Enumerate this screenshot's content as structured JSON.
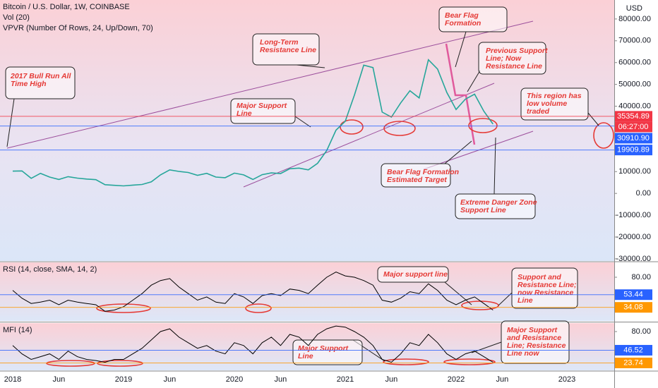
{
  "chart_data": [
    {
      "type": "line",
      "title": "Bitcoin / U.S. Dollar, 1W, COINBASE",
      "subtitles": [
        "Vol (20)",
        "VPVR (Number Of Rows, 24, Up/Down, 70)"
      ],
      "ylabel": "USD",
      "categories": [
        "2018",
        null,
        null,
        null,
        null,
        "Jun",
        null,
        null,
        null,
        null,
        null,
        null,
        "2019",
        null,
        null,
        null,
        null,
        "Jun",
        null,
        null,
        null,
        null,
        null,
        null,
        "2020",
        null,
        null,
        null,
        null,
        "Jun",
        null,
        null,
        null,
        null,
        null,
        null,
        "2021",
        null,
        null,
        null,
        null,
        "Jun",
        null,
        null,
        null,
        null,
        null,
        null,
        "2022",
        null,
        null,
        null,
        null,
        "Jun",
        null,
        null,
        null,
        null,
        null,
        null,
        "2023"
      ],
      "values": [
        10200,
        10300,
        6900,
        9200,
        7500,
        6400,
        7700,
        7000,
        6600,
        6300,
        4000,
        3700,
        3450,
        3800,
        4100,
        5300,
        8500,
        10800,
        10100,
        9600,
        8300,
        9200,
        7500,
        7200,
        9300,
        8500,
        6400,
        8600,
        9400,
        9100,
        11300,
        11600,
        10800,
        13800,
        19700,
        29000,
        33100,
        45200,
        58800,
        57700,
        37300,
        35000,
        41500,
        47100,
        43800,
        61300,
        57000,
        46300,
        38500,
        43200,
        45500,
        37700,
        31800,
        null,
        null,
        null,
        null,
        null,
        null,
        null,
        null
      ],
      "color": "#26a69a",
      "ylim": [
        -31000,
        88700
      ],
      "yticks": [
        {
          "value": 80000,
          "label": "80000.00"
        },
        {
          "value": 70000,
          "label": "70000.00"
        },
        {
          "value": 60000,
          "label": "60000.00"
        },
        {
          "value": 50000,
          "label": "50000.00"
        },
        {
          "value": 40000,
          "label": "40000.00"
        },
        {
          "value": 10000,
          "label": "10000.00"
        },
        {
          "value": 0,
          "label": "0.00"
        },
        {
          "value": -10000,
          "label": "-10000.00"
        },
        {
          "value": -20000,
          "label": "-20000.00"
        },
        {
          "value": -30000,
          "label": "-30000.00"
        }
      ],
      "markers": [
        {
          "value": 35354.89,
          "label": "35354.89",
          "color": "#f23645"
        },
        {
          "value": 30910.9,
          "label": "30910.90",
          "color": "#2962ff"
        },
        {
          "value": 19909.89,
          "label": "19909.89",
          "color": "#2962ff"
        }
      ],
      "countdown": "06:27:00"
    },
    {
      "type": "line",
      "title": "RSI (14, close, SMA, 14, 2)",
      "values": [
        60,
        48,
        40,
        42,
        45,
        38,
        45,
        42,
        40,
        38,
        28,
        30,
        35,
        45,
        55,
        68,
        75,
        78,
        65,
        55,
        45,
        50,
        42,
        40,
        55,
        50,
        40,
        52,
        55,
        52,
        62,
        60,
        55,
        68,
        80,
        88,
        82,
        80,
        75,
        68,
        45,
        42,
        48,
        58,
        55,
        70,
        60,
        45,
        38,
        45,
        50,
        40,
        30,
        null,
        null,
        null,
        null,
        null,
        null,
        null,
        null
      ],
      "color": "#000000",
      "ylim": [
        13.3,
        102.6
      ],
      "yticks": [
        {
          "value": 80,
          "label": "80.00"
        }
      ],
      "markers": [
        {
          "value": 53.44,
          "label": "53.44",
          "color": "#2962ff"
        },
        {
          "value": 34.08,
          "label": "34.08",
          "color": "#ff9800"
        }
      ]
    },
    {
      "type": "line",
      "title": "MFI (14)",
      "values": [
        55,
        40,
        30,
        35,
        40,
        30,
        45,
        35,
        30,
        28,
        25,
        30,
        30,
        40,
        50,
        65,
        80,
        85,
        70,
        60,
        50,
        55,
        45,
        40,
        60,
        55,
        40,
        60,
        70,
        55,
        75,
        70,
        55,
        75,
        85,
        90,
        88,
        80,
        70,
        55,
        30,
        25,
        40,
        60,
        55,
        75,
        60,
        40,
        30,
        40,
        45,
        35,
        25,
        null,
        null,
        null,
        null,
        null,
        null,
        null,
        null
      ],
      "color": "#000000",
      "ylim": [
        10.4,
        95.2
      ],
      "yticks": [
        {
          "value": 80,
          "label": "80.00"
        }
      ],
      "markers": [
        {
          "value": 46.52,
          "label": "46.52",
          "color": "#2962ff"
        },
        {
          "value": 23.74,
          "label": "23.74",
          "color": "#ff9800"
        }
      ]
    }
  ],
  "annotations": [
    {
      "lines": [
        "2017 Bull Run All",
        "Time High"
      ]
    },
    {
      "lines": [
        "Long-Term",
        "Resistance Line"
      ]
    },
    {
      "lines": [
        "Major Support",
        "Line"
      ]
    },
    {
      "lines": [
        "Bear Flag",
        "Formation"
      ]
    },
    {
      "lines": [
        "Previous Support",
        "Line; Now",
        "Resistance Line"
      ]
    },
    {
      "lines": [
        "This region has",
        "low volume",
        "traded"
      ]
    },
    {
      "lines": [
        "Bear Flag Formation",
        "Estimated Target"
      ]
    },
    {
      "lines": [
        "Extreme Danger Zone",
        "Support Line"
      ]
    },
    {
      "lines": [
        "Major support line"
      ]
    },
    {
      "lines": [
        "Support and",
        "Resistance Line;",
        "now Resistance",
        "Line"
      ]
    },
    {
      "lines": [
        "Major Support",
        "Line"
      ]
    },
    {
      "lines": [
        "Major Support",
        "and Resistance",
        "Line; Resistance",
        "Line now"
      ]
    }
  ]
}
